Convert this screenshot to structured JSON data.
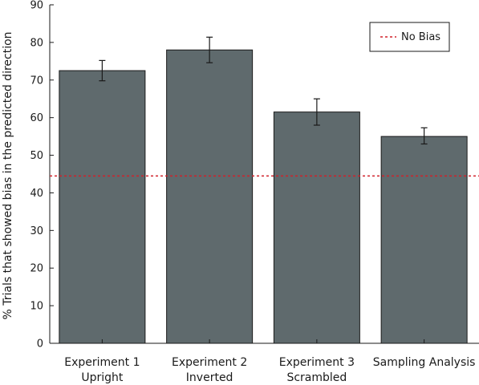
{
  "chart_data": {
    "type": "bar",
    "categories": [
      [
        "Experiment 1",
        "Upright"
      ],
      [
        "Experiment 2",
        "Inverted"
      ],
      [
        "Experiment 3",
        "Scrambled"
      ],
      [
        "Sampling Analysis"
      ]
    ],
    "series": [
      {
        "values": [
          72.5,
          78,
          61.5,
          55
        ],
        "error_low": [
          69.8,
          74.6,
          58,
          53
        ],
        "error_high": [
          75.2,
          81.4,
          65,
          57.3
        ],
        "color": "#5f6a6d"
      }
    ],
    "reference_line": {
      "name": "No Bias",
      "y": 44.5,
      "style": "dashed",
      "color": "#d0212a"
    },
    "ylabel": "% Trials that showed bias in the predicted direction",
    "xlabel": "",
    "ylim": [
      0,
      90
    ],
    "yticks": [
      0,
      10,
      20,
      30,
      40,
      50,
      60,
      70,
      80,
      90
    ],
    "grid": false,
    "legend_position": "top-right"
  }
}
